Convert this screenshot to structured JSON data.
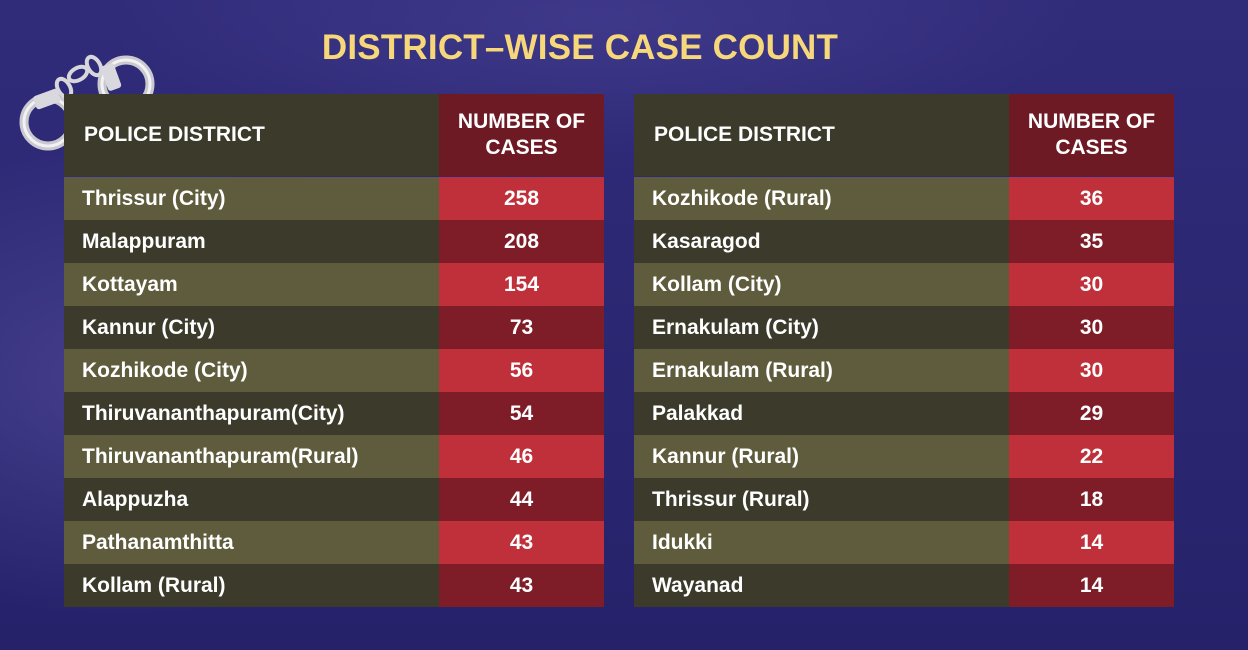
{
  "title": "DISTRICT–WISE CASE COUNT",
  "colors": {
    "background": "#2b2770",
    "title": "#f6d77a",
    "district_header": "#3c3a2b",
    "cases_header": "#6e1a24",
    "row_light_district": "#5f5c3d",
    "row_light_cases": "#c0303a",
    "row_dark_district": "#3c3a2b",
    "row_dark_cases": "#7e1d28"
  },
  "decoration": {
    "icon": "handcuffs-icon"
  },
  "chart_data": {
    "type": "table",
    "title": "DISTRICT–WISE CASE COUNT",
    "tables": [
      {
        "headers": [
          "POLICE DISTRICT",
          "NUMBER OF CASES"
        ],
        "rows": [
          {
            "district": "Thrissur (City)",
            "cases": 258
          },
          {
            "district": "Malappuram",
            "cases": 208
          },
          {
            "district": "Kottayam",
            "cases": 154
          },
          {
            "district": "Kannur (City)",
            "cases": 73
          },
          {
            "district": "Kozhikode (City)",
            "cases": 56
          },
          {
            "district": "Thiruvananthapuram(City)",
            "cases": 54
          },
          {
            "district": "Thiruvananthapuram(Rural)",
            "cases": 46
          },
          {
            "district": "Alappuzha",
            "cases": 44
          },
          {
            "district": "Pathanamthitta",
            "cases": 43
          },
          {
            "district": "Kollam (Rural)",
            "cases": 43
          }
        ]
      },
      {
        "headers": [
          "POLICE DISTRICT",
          "NUMBER OF CASES"
        ],
        "rows": [
          {
            "district": "Kozhikode (Rural)",
            "cases": 36
          },
          {
            "district": "Kasaragod",
            "cases": 35
          },
          {
            "district": "Kollam (City)",
            "cases": 30
          },
          {
            "district": "Ernakulam (City)",
            "cases": 30
          },
          {
            "district": "Ernakulam (Rural)",
            "cases": 30
          },
          {
            "district": "Palakkad",
            "cases": 29
          },
          {
            "district": "Kannur (Rural)",
            "cases": 22
          },
          {
            "district": "Thrissur (Rural)",
            "cases": 18
          },
          {
            "district": "Idukki",
            "cases": 14
          },
          {
            "district": "Wayanad",
            "cases": 14
          }
        ]
      }
    ]
  }
}
